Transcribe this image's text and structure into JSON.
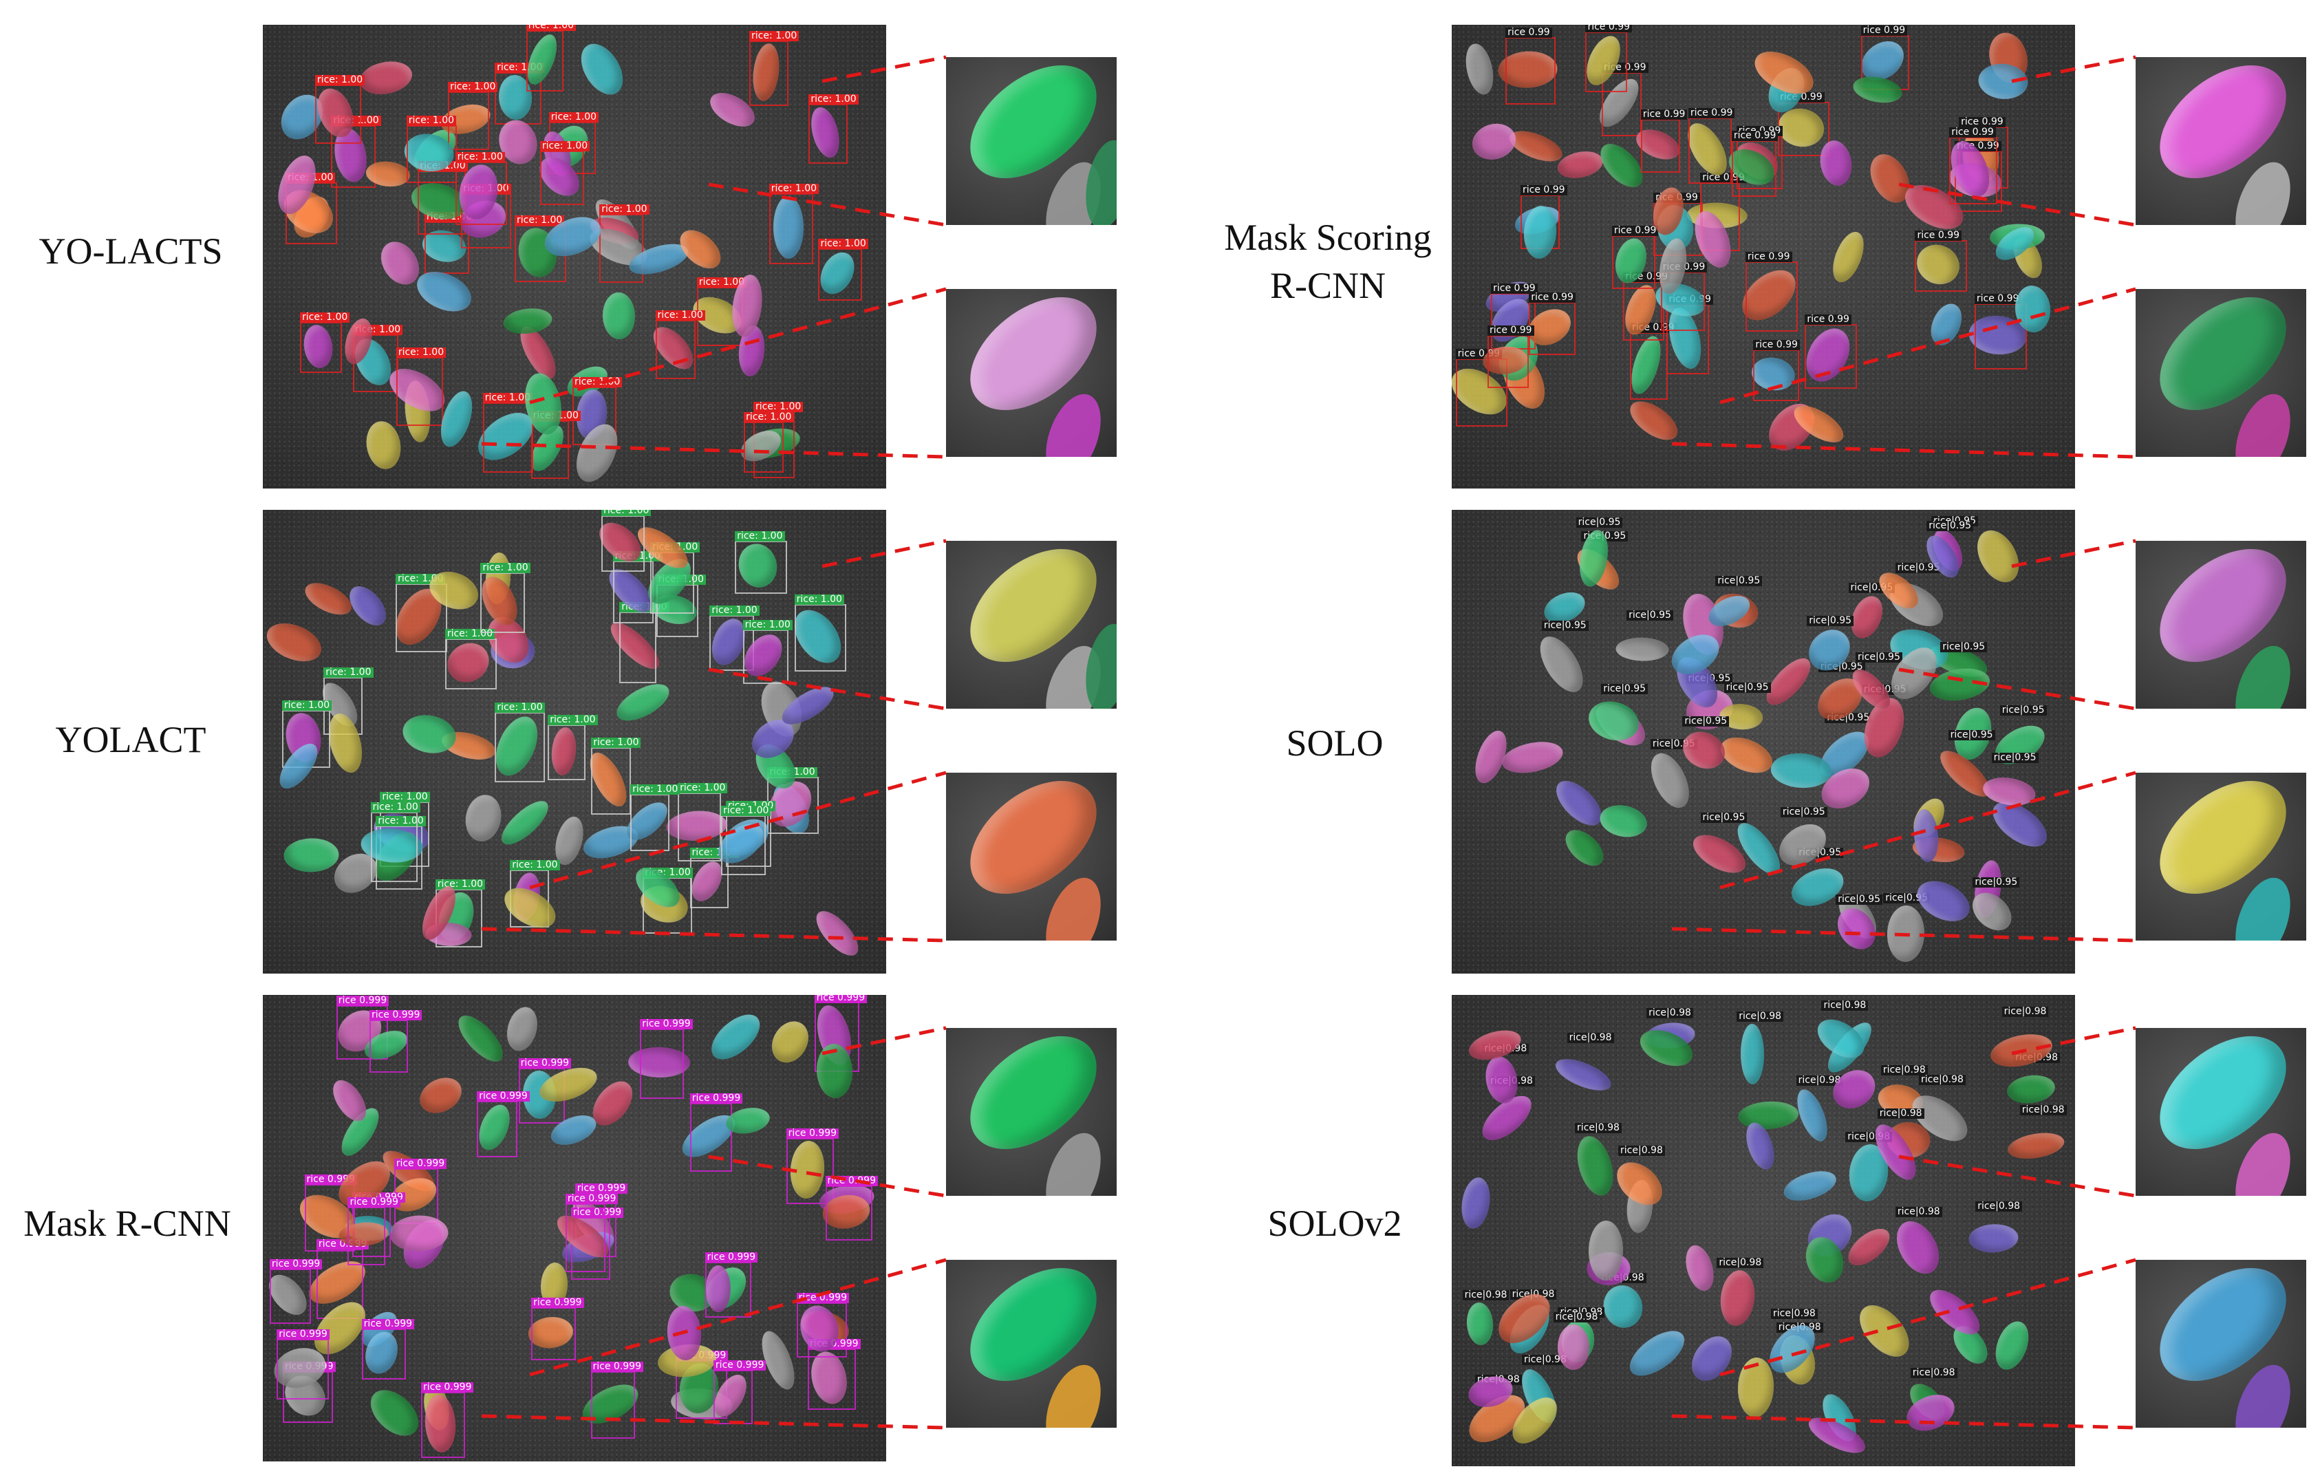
{
  "methods": [
    {
      "label_lines": [
        "YO-LACTS"
      ],
      "badge": "rice: 1.00",
      "badge_color": "#e02020",
      "box_color": "#e02020",
      "zoom_colors": [
        [
          "#27c96a",
          "#9a9a9a",
          "#2e8b57"
        ],
        [
          "#d89ad8",
          "#c040c0"
        ]
      ]
    },
    {
      "label_lines": [
        "YOLACT"
      ],
      "badge": "rice: 1.00",
      "badge_color": "#2aa84a",
      "box_color": "#cccccc",
      "zoom_colors": [
        [
          "#c9c85a",
          "#a8a8a8",
          "#2e8b57"
        ],
        [
          "#e0704a",
          "#e0704a"
        ]
      ]
    },
    {
      "label_lines": [
        "Mask R-CNN"
      ],
      "badge": "rice 0.999",
      "badge_color": "#d020d0",
      "box_color": "#d020d0",
      "zoom_colors": [
        [
          "#20c060",
          "#9a9a9a"
        ],
        [
          "#18c070",
          "#e0a030"
        ]
      ]
    },
    {
      "label_lines": [
        "Mask Scoring",
        "R-CNN"
      ],
      "badge": "rice 0.99",
      "badge_color": "#1a1a1a",
      "box_color": "#e02020",
      "zoom_colors": [
        [
          "#e060d8",
          "#b0b0b0"
        ],
        [
          "#2e9a5a",
          "#c040a0"
        ]
      ]
    },
    {
      "label_lines": [
        "SOLO"
      ],
      "badge": "rice|0.95",
      "badge_color": "#1a1a1a",
      "box_color": "none",
      "zoom_colors": [
        [
          "#c070c8",
          "#2e9a5a"
        ],
        [
          "#d8cc50",
          "#30b0b0"
        ]
      ]
    },
    {
      "label_lines": [
        "SOLOv2"
      ],
      "badge": "rice|0.98",
      "badge_color": "#1a1a1a",
      "box_color": "none",
      "zoom_colors": [
        [
          "#40d0d0",
          "#d060c0"
        ],
        [
          "#4aa0d0",
          "#8050c0"
        ]
      ]
    }
  ]
}
